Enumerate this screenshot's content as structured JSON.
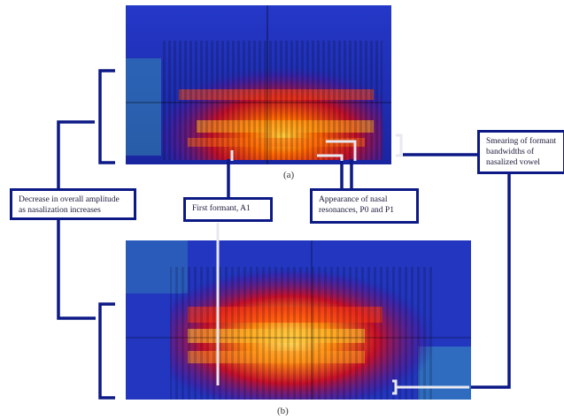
{
  "panels": [
    {
      "caption": "(a)"
    },
    {
      "caption": "(b)"
    }
  ],
  "annotations": {
    "smearing": "Smearing of formant bandwidths of nasalized vowel",
    "amplitude": "Decrease in overall amplitude as nasalization increases",
    "first_formant": "First formant, A1",
    "nasal": "Appearance of nasal resonances, P0 and P1"
  },
  "side_text": "",
  "colors": {
    "label_border": "#0d1a86",
    "connector": "#0d1a86",
    "highlight": "#e8e8f0",
    "spectrogram_bg": "#1f2fb0"
  }
}
